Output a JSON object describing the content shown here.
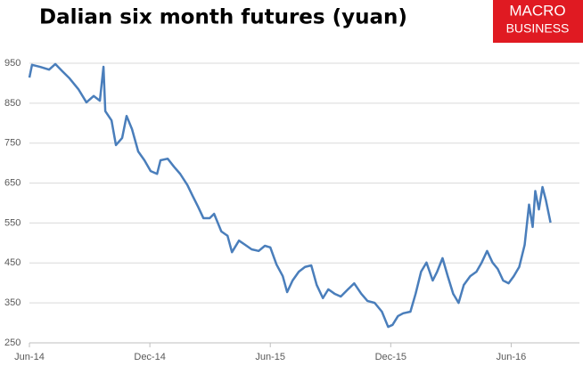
{
  "chart_data": {
    "type": "line",
    "title": "Dalian six month futures (yuan)",
    "logo": [
      "MACRO",
      "BUSINESS"
    ],
    "x": [
      0,
      0.13,
      0.53,
      0.98,
      1.29,
      1.64,
      2.0,
      2.44,
      2.84,
      3.2,
      3.51,
      3.69,
      3.78,
      4.09,
      4.31,
      4.62,
      4.84,
      5.11,
      5.42,
      5.73,
      6.04,
      6.36,
      6.53,
      6.89,
      7.2,
      7.51,
      7.87,
      8.13,
      8.4,
      8.67,
      8.98,
      9.2,
      9.56,
      9.87,
      10.09,
      10.44,
      10.76,
      11.07,
      11.42,
      11.73,
      12.0,
      12.31,
      12.62,
      12.84,
      13.11,
      13.42,
      13.73,
      14.04,
      14.31,
      14.62,
      14.89,
      15.2,
      15.51,
      15.87,
      16.18,
      16.53,
      16.84,
      17.2,
      17.56,
      17.87,
      18.09,
      18.36,
      18.62,
      18.98,
      19.24,
      19.51,
      19.78,
      20.09,
      20.31,
      20.58,
      20.84,
      21.11,
      21.38,
      21.64,
      21.96,
      22.27,
      22.53,
      22.8,
      23.07,
      23.33,
      23.6,
      23.87,
      24.13,
      24.4,
      24.67,
      24.89,
      25.07,
      25.2,
      25.38,
      25.56,
      25.73,
      25.96
    ],
    "series": [
      {
        "name": "Dalian six month futures",
        "color": "#4a7ebb",
        "values": [
          914,
          946,
          941,
          934,
          948,
          930,
          912,
          885,
          852,
          868,
          856,
          941,
          830,
          807,
          745,
          763,
          818,
          785,
          729,
          707,
          680,
          673,
          707,
          711,
          691,
          673,
          645,
          618,
          591,
          562,
          562,
          573,
          529,
          518,
          477,
          506,
          495,
          484,
          480,
          493,
          489,
          446,
          417,
          377,
          406,
          428,
          440,
          444,
          395,
          362,
          384,
          373,
          366,
          384,
          399,
          373,
          355,
          350,
          328,
          290,
          295,
          317,
          324,
          328,
          373,
          428,
          451,
          406,
          428,
          462,
          417,
          373,
          350,
          395,
          417,
          428,
          451,
          480,
          451,
          435,
          406,
          399,
          417,
          440,
          495,
          596,
          540,
          630,
          584,
          640,
          607,
          551
        ]
      }
    ],
    "xlim": [
      0,
      27.4
    ],
    "xticks": [
      {
        "value": 0,
        "label": "Jun-14"
      },
      {
        "value": 6,
        "label": "Dec-14"
      },
      {
        "value": 12,
        "label": "Jun-15"
      },
      {
        "value": 18,
        "label": "Dec-15"
      },
      {
        "value": 24,
        "label": "Jun-16"
      }
    ],
    "ylim": [
      250,
      950
    ],
    "yticks": [
      250,
      350,
      450,
      550,
      650,
      750,
      850,
      950
    ],
    "grid": true
  }
}
